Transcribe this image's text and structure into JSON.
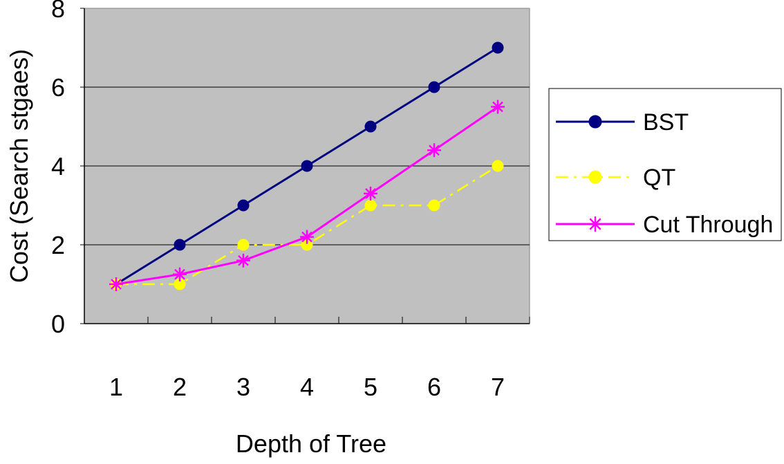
{
  "chart_data": {
    "type": "line",
    "title": "",
    "xlabel": "Depth of Tree",
    "ylabel": "Cost (Search stgaes)",
    "categories": [
      "1",
      "2",
      "3",
      "4",
      "5",
      "6",
      "7"
    ],
    "ylim": [
      0,
      8
    ],
    "yticks": [
      "0",
      "2",
      "4",
      "6",
      "8"
    ],
    "grid": true,
    "plot_background": "#c0c0c0",
    "legend_position": "right",
    "series": [
      {
        "name": "BST",
        "values": [
          1,
          2,
          3,
          4,
          5,
          6,
          7
        ],
        "color": "#000080",
        "line_style": "solid",
        "marker": "circle"
      },
      {
        "name": "QT",
        "values": [
          1,
          1,
          2,
          2,
          3,
          3,
          4
        ],
        "color": "#ffff00",
        "line_style": "dash-dot",
        "marker": "circle"
      },
      {
        "name": "Cut Through",
        "values": [
          1,
          1.25,
          1.6,
          2.2,
          3.3,
          4.4,
          5.5
        ],
        "color": "#ff00ff",
        "line_style": "solid",
        "marker": "asterisk"
      }
    ]
  }
}
